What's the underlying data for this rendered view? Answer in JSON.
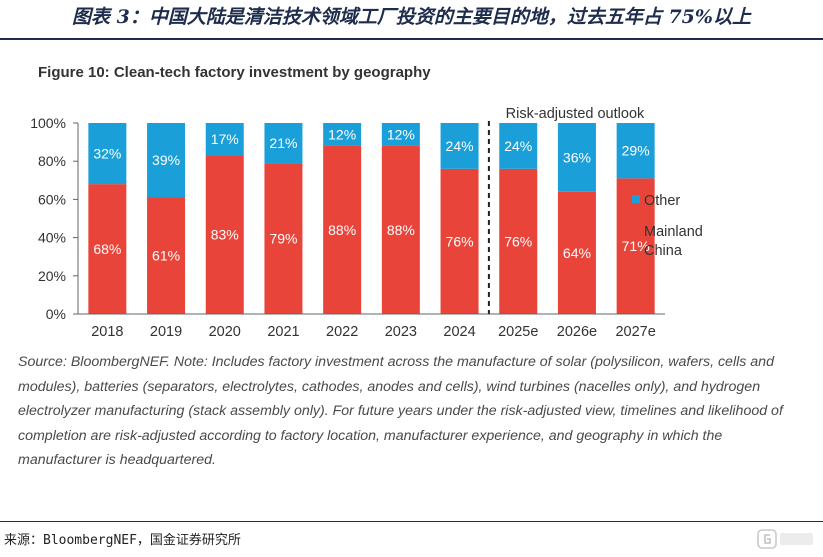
{
  "header": {
    "title": "图表 3：中国大陆是清洁技术领域工厂投资的主要目的地，过去五年占 75%以上"
  },
  "figure": {
    "title": "Figure 10: Clean-tech factory investment by geography",
    "note": "Source: BloombergNEF. Note: Includes factory investment across the manufacture of solar (polysilicon, wafers, cells and modules), batteries (separators, electrolytes, cathodes, anodes and cells), wind turbines (nacelles only), and hydrogen electrolyzer manufacturing (stack assembly only). For future years under the risk-adjusted view, timelines and likelihood of completion are risk-adjusted according to factory location, manufacturer experience, and geography in which the manufacturer is headquartered."
  },
  "footer": {
    "source": "来源：BloombergNEF，国金证券研究所"
  },
  "logo": {
    "icon": "gelonghui-logo-icon"
  },
  "chart_data": {
    "type": "bar",
    "stacked": true,
    "categories": [
      "2018",
      "2019",
      "2020",
      "2021",
      "2022",
      "2023",
      "2024",
      "2025e",
      "2026e",
      "2027e"
    ],
    "series": [
      {
        "name": "Mainland China",
        "values": [
          68,
          61,
          83,
          79,
          88,
          88,
          76,
          76,
          64,
          71
        ],
        "color": "#e8443a"
      },
      {
        "name": "Other",
        "values": [
          32,
          39,
          17,
          21,
          12,
          12,
          24,
          24,
          36,
          29
        ],
        "color": "#1a9fd9"
      }
    ],
    "ylim": [
      0,
      100
    ],
    "yticks": [
      "0%",
      "20%",
      "40%",
      "60%",
      "80%",
      "100%"
    ],
    "legend": [
      "Other",
      "Mainland China"
    ],
    "legend_position": "right",
    "annotation": "Risk-adjusted outlook",
    "forecast_divider_after": "2024",
    "value_suffix": "%",
    "grid": false
  }
}
